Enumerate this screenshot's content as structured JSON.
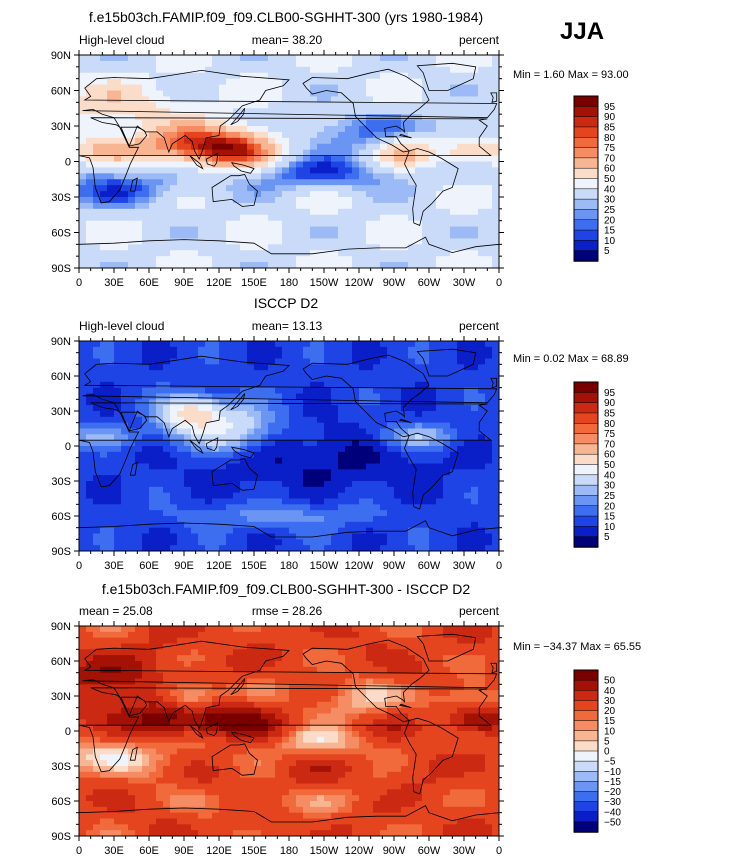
{
  "season": "JJA",
  "colors": {
    "model_scale": [
      "#00007a",
      "#0a1fc8",
      "#1f44e6",
      "#3d6ef0",
      "#6a95f2",
      "#9cbaf5",
      "#c9dbf8",
      "#eef3fc",
      "#fbdcc8",
      "#f8b592",
      "#f68c64",
      "#f06a3c",
      "#e4451f",
      "#cc2912",
      "#a31204",
      "#7a0000"
    ],
    "diff_scale": [
      "#00007a",
      "#0a1fc8",
      "#1f44e6",
      "#3d6ef0",
      "#6a95f2",
      "#9cbaf5",
      "#c9dbf8",
      "#eef3fc",
      "#fbdcc8",
      "#f8b592",
      "#f68c64",
      "#f06a3c",
      "#e4451f",
      "#cc2912",
      "#a31204",
      "#7a0000"
    ],
    "coast": "#000000"
  },
  "chart_data": [
    {
      "type": "heatmap",
      "title": "f.e15b03ch.FAMIP.f09_f09.CLB00-SGHHT-300 (yrs 1980-1984)",
      "left_label": "High-level cloud",
      "center_label": "mean=   38.20",
      "right_label": "percent",
      "stats_label": "Min =     1.60  Max =    93.00",
      "min": 1.6,
      "max": 93.0,
      "mean": 38.2,
      "lat_ticks": [
        "90N",
        "60N",
        "30N",
        "0",
        "30S",
        "60S",
        "90S"
      ],
      "lon_ticks": [
        "0",
        "30E",
        "60E",
        "90E",
        "120E",
        "150E",
        "180",
        "150W",
        "120W",
        "90W",
        "60W",
        "30W",
        "0"
      ],
      "colorbar_levels": [
        "95",
        "90",
        "85",
        "80",
        "75",
        "70",
        "60",
        "50",
        "40",
        "30",
        "25",
        "20",
        "15",
        "10",
        "5"
      ],
      "variant": "model"
    },
    {
      "type": "heatmap",
      "title": "ISCCP D2",
      "left_label": "High-level cloud",
      "center_label": "mean=   13.13",
      "right_label": "percent",
      "stats_label": "Min =    0.02  Max =    68.89",
      "min": 0.02,
      "max": 68.89,
      "mean": 13.13,
      "lat_ticks": [
        "90N",
        "60N",
        "30N",
        "0",
        "30S",
        "60S",
        "90S"
      ],
      "lon_ticks": [
        "0",
        "30E",
        "60E",
        "90E",
        "120E",
        "150E",
        "180",
        "150W",
        "120W",
        "90W",
        "60W",
        "30W",
        "0"
      ],
      "colorbar_levels": [
        "95",
        "90",
        "85",
        "80",
        "75",
        "70",
        "60",
        "50",
        "40",
        "30",
        "25",
        "20",
        "15",
        "10",
        "5"
      ],
      "variant": "obs"
    },
    {
      "type": "heatmap",
      "title": "f.e15b03ch.FAMIP.f09_f09.CLB00-SGHHT-300 - ISCCP D2",
      "left_label": "mean =   25.08",
      "center_label": "rmse =   28.26",
      "right_label": "percent",
      "stats_label": "Min = −34.37  Max =    65.55",
      "min": -34.37,
      "max": 65.55,
      "mean": 25.08,
      "rmse": 28.26,
      "lat_ticks": [
        "90N",
        "60N",
        "30N",
        "0",
        "30S",
        "60S",
        "90S"
      ],
      "lon_ticks": [
        "0",
        "30E",
        "60E",
        "90E",
        "120E",
        "150E",
        "180",
        "150W",
        "120W",
        "90W",
        "60W",
        "30W",
        "0"
      ],
      "colorbar_levels": [
        "50",
        "40",
        "30",
        "20",
        "15",
        "10",
        "5",
        "0",
        "−5",
        "−10",
        "−15",
        "−20",
        "−30",
        "−40",
        "−50"
      ],
      "variant": "diff"
    }
  ]
}
